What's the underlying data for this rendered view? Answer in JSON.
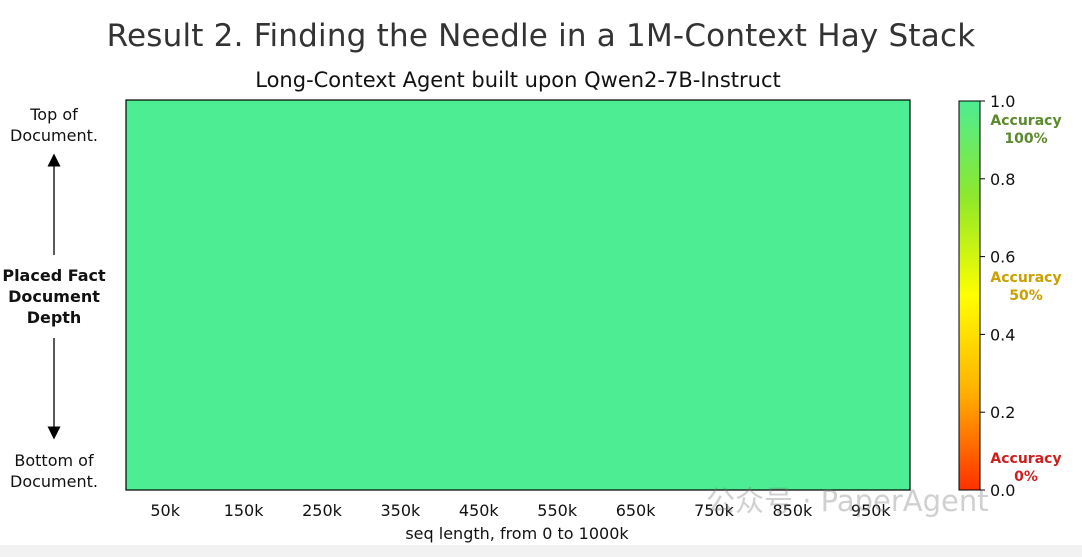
{
  "page": {
    "title": "Result 2. Finding the Needle in a 1M-Context Hay Stack",
    "watermark": "公众号 · PaperAgent"
  },
  "y_axis": {
    "top_label": "Top of\nDocument.",
    "center_label": "Placed Fact\nDocument\nDepth",
    "bottom_label": "Bottom of\nDocument."
  },
  "colorbar": {
    "ticks": [
      "0.0",
      "0.2",
      "0.4",
      "0.6",
      "0.8",
      "1.0"
    ],
    "annotations": [
      {
        "text": "Accuracy\n100%",
        "color": "#5b8a2e"
      },
      {
        "text": "Accuracy\n50%",
        "color": "#c9a000"
      },
      {
        "text": "Accuracy\n0%",
        "color": "#cc1f1f"
      }
    ],
    "colors": [
      "#ff3000",
      "#ffb000",
      "#ffff00",
      "#8fe82a",
      "#4ded93"
    ]
  },
  "chart_data": {
    "type": "heatmap",
    "title": "Long-Context Agent built upon Qwen2-7B-Instruct",
    "xlabel": "seq length, from 0 to 1000k",
    "ylabel": "Placed Fact Document Depth",
    "x_ticks": [
      "50k",
      "150k",
      "250k",
      "350k",
      "450k",
      "550k",
      "650k",
      "750k",
      "850k",
      "950k"
    ],
    "value_range": [
      0.0,
      1.0
    ],
    "values": [
      [
        1.0,
        1.0,
        1.0,
        1.0,
        1.0,
        1.0,
        1.0,
        1.0,
        1.0,
        1.0
      ]
    ],
    "fill_color": "#4ded93"
  }
}
